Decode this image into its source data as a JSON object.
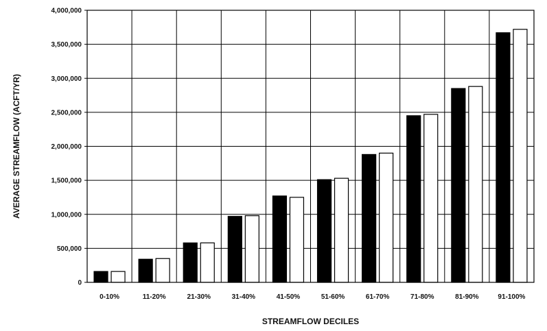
{
  "chart_data": {
    "type": "bar",
    "title": "",
    "xlabel": "STREAMFLOW DECILES",
    "ylabel": "AVERAGE STREAMFLOW (ACFT/YR)",
    "ylim": [
      0,
      4000000
    ],
    "yticks": [
      0,
      500000,
      1000000,
      1500000,
      2000000,
      2500000,
      3000000,
      3500000,
      4000000
    ],
    "ytick_labels": [
      "0",
      "500,000",
      "1,000,000",
      "1,500,000",
      "2,000,000",
      "2,500,000",
      "3,000,000",
      "3,500,000",
      "4,000,000"
    ],
    "grid": true,
    "legend": "none",
    "categories": [
      "0-10%",
      "11-20%",
      "21-30%",
      "31-40%",
      "41-50%",
      "51-60%",
      "61-70%",
      "71-80%",
      "81-90%",
      "91-100%"
    ],
    "series": [
      {
        "color": "#000000",
        "values": [
          160000,
          340000,
          580000,
          970000,
          1270000,
          1510000,
          1880000,
          2450000,
          2850000,
          3670000
        ]
      },
      {
        "color": "#ffffff",
        "values": [
          160000,
          350000,
          580000,
          980000,
          1250000,
          1530000,
          1900000,
          2470000,
          2880000,
          3720000
        ]
      }
    ]
  }
}
